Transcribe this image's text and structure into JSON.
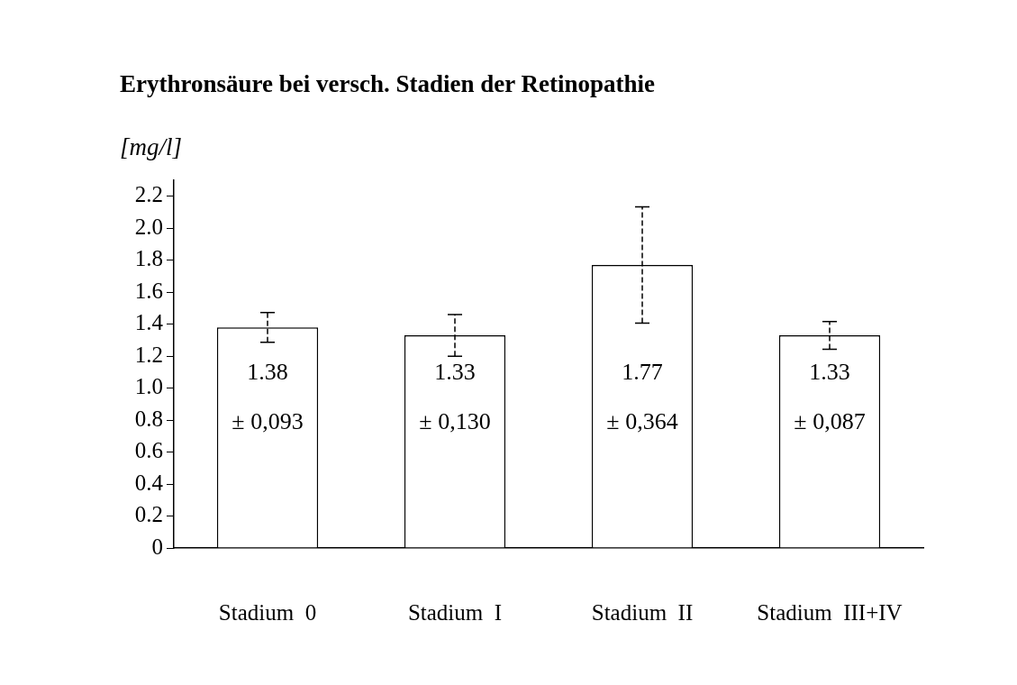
{
  "chart_data": {
    "type": "bar",
    "title": "Erythronsäure bei versch. Stadien der Retinopathie",
    "ylabel": "[mg/l]",
    "categories": [
      "Stadium  0",
      "Stadium  I",
      "Stadium  II",
      "Stadium  III+IV"
    ],
    "values": [
      1.38,
      1.33,
      1.77,
      1.33
    ],
    "errors": [
      0.093,
      0.13,
      0.364,
      0.087
    ],
    "value_labels": [
      "1.38\n± 0,093",
      "1.33\n± 0,130",
      "1.77\n± 0,364",
      "1.33\n± 0,087"
    ],
    "color": "#ffffff",
    "ylim": [
      0,
      2.3
    ],
    "yticks": [
      0,
      0.2,
      0.4,
      0.6,
      0.8,
      {
        "value": 1,
        "label": "1.0"
      },
      1.2,
      1.4,
      1.6,
      1.8,
      {
        "value": 2,
        "label": "2.0"
      },
      2.2
    ],
    "grid": false,
    "legend": false
  }
}
